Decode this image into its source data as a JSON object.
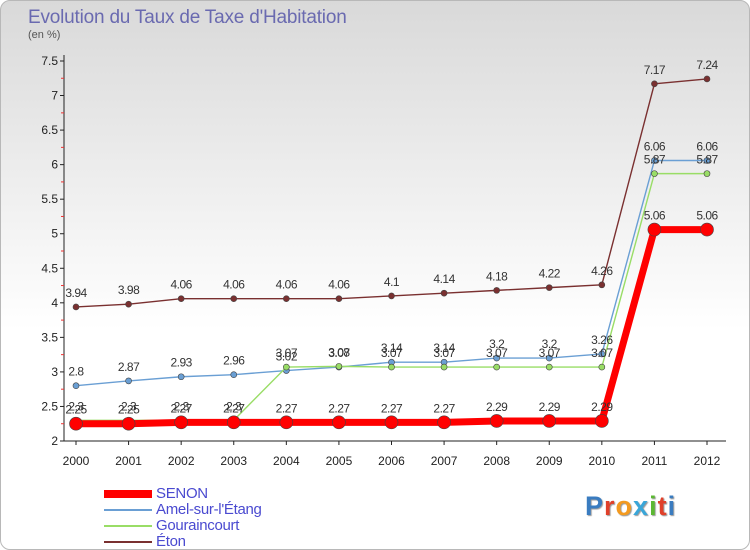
{
  "header": {
    "title": "Evolution du Taux de Taxe d'Habitation",
    "subtitle": "(en %)"
  },
  "logo": {
    "text": "Proxiti",
    "letter_colors": [
      "#3a7cc0",
      "#e0402a",
      "#f39a1f",
      "#3aa6d8",
      "#5cb833",
      "#e0402a",
      "#3a7cc0"
    ]
  },
  "chart_data": {
    "type": "line",
    "title": "Evolution du Taux de Taxe d'Habitation",
    "ylabel": "(en %)",
    "xlabel": "",
    "categories": [
      "2000",
      "2001",
      "2002",
      "2003",
      "2004",
      "2005",
      "2006",
      "2007",
      "2008",
      "2009",
      "2010",
      "2011",
      "2012"
    ],
    "ylim": [
      2,
      7.5
    ],
    "yticks": [
      "2",
      "2.5",
      "3",
      "3.5",
      "4",
      "4.5",
      "5",
      "5.5",
      "6",
      "6.5",
      "7",
      "7.5"
    ],
    "grid": false,
    "legend_position": "bottom-left",
    "series": [
      {
        "name": "SENON",
        "color": "#ff0000",
        "values": [
          2.25,
          2.25,
          2.27,
          2.27,
          2.27,
          2.27,
          2.27,
          2.27,
          2.29,
          2.29,
          2.29,
          5.06,
          5.06
        ],
        "labels": [
          "2.25",
          "2.25",
          "2.27",
          "2.27",
          "2.27",
          "2.27",
          "2.27",
          "2.27",
          "2.29",
          "2.29",
          "2.29",
          "5.06",
          "5.06"
        ]
      },
      {
        "name": "Amel-sur-l'Étang",
        "color": "#6a9fd4",
        "values": [
          2.8,
          2.87,
          2.93,
          2.96,
          3.02,
          3.07,
          3.14,
          3.14,
          3.2,
          3.2,
          3.26,
          6.06,
          6.06
        ],
        "labels": [
          "2.8",
          "2.87",
          "2.93",
          "2.96",
          "3.02",
          "3.07",
          "3.14",
          "3.14",
          "3.2",
          "3.2",
          "3.26",
          "6.06",
          "6.06"
        ]
      },
      {
        "name": "Gouraincourt",
        "color": "#99dd66",
        "values": [
          2.3,
          2.3,
          2.3,
          2.3,
          3.07,
          3.08,
          3.07,
          3.07,
          3.07,
          3.07,
          3.07,
          5.87,
          5.87
        ],
        "labels": [
          "2.3",
          "2.3",
          "2.3",
          "2.3",
          "3.07",
          "3.08",
          "3.07",
          "3.07",
          "3.07",
          "3.07",
          "3.07",
          "5.87",
          "5.87"
        ]
      },
      {
        "name": "Éton",
        "color": "#7a3030",
        "values": [
          3.94,
          3.98,
          4.06,
          4.06,
          4.06,
          4.06,
          4.1,
          4.14,
          4.18,
          4.22,
          4.26,
          7.17,
          7.24
        ],
        "labels": [
          "3.94",
          "3.98",
          "4.06",
          "4.06",
          "4.06",
          "4.06",
          "4.1",
          "4.14",
          "4.18",
          "4.22",
          "4.26",
          "7.17",
          "7.24"
        ]
      }
    ]
  }
}
